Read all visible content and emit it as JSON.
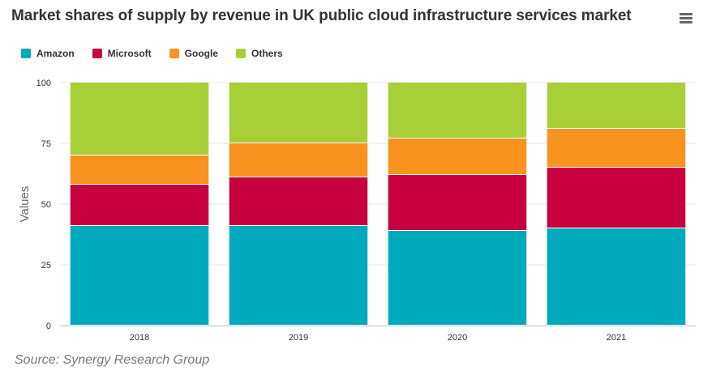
{
  "title": "Market shares of supply by revenue in UK public cloud infrastructure services market",
  "source": "Source: Synergy Research Group",
  "menu": {
    "icon": "hamburger-menu-icon"
  },
  "chart_data": {
    "type": "bar",
    "stacked": true,
    "categories": [
      "2018",
      "2019",
      "2020",
      "2021"
    ],
    "series": [
      {
        "name": "Amazon",
        "color": "#00a9bc",
        "values": [
          41,
          41,
          39,
          40
        ]
      },
      {
        "name": "Microsoft",
        "color": "#c8003f",
        "values": [
          17,
          20,
          23,
          25
        ]
      },
      {
        "name": "Google",
        "color": "#f7931e",
        "values": [
          12,
          14,
          15,
          16
        ]
      },
      {
        "name": "Others",
        "color": "#a8cf38",
        "values": [
          30,
          25,
          23,
          19
        ]
      }
    ],
    "ylabel": "Values",
    "ylim": [
      0,
      100
    ],
    "yticks": [
      0,
      25,
      50,
      75,
      100
    ],
    "grid": true,
    "legend_position": "top-left"
  }
}
